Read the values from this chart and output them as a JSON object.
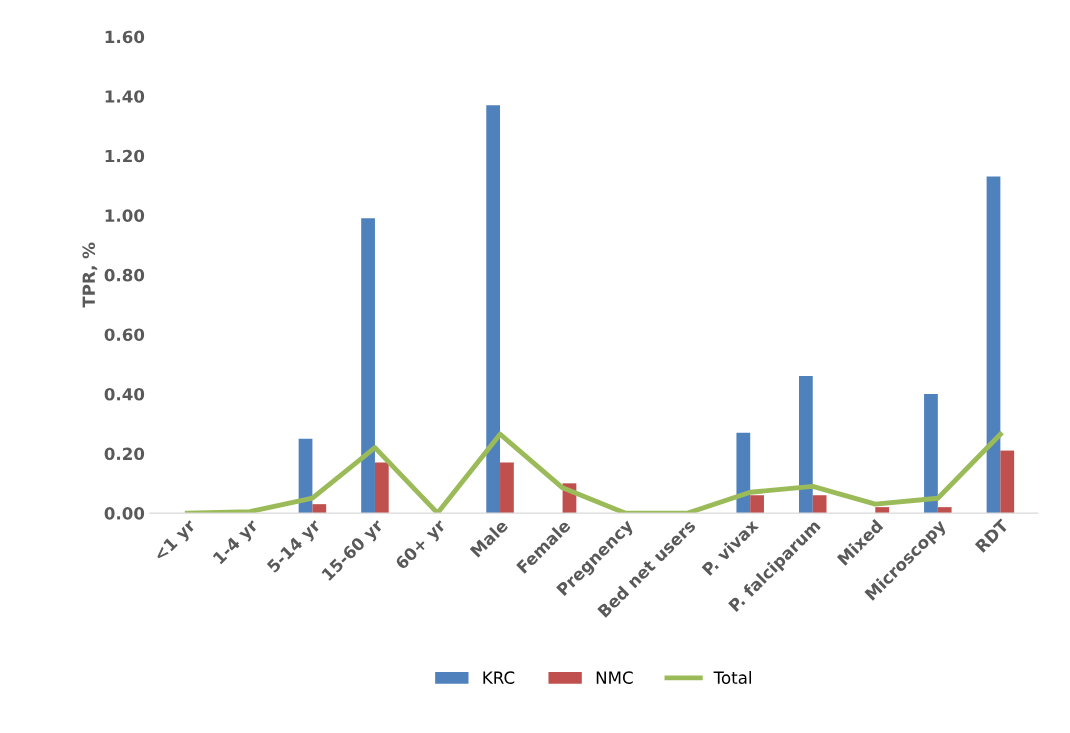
{
  "chart_data": {
    "type": "bar",
    "ylabel": "TPR, %",
    "categories": [
      "<1 yr",
      "1-4 yr",
      "5-14 yr",
      "15-60 yr",
      "60+ yr",
      "Male",
      "Female",
      "Pregnency",
      "Bed net users",
      "P. vivax",
      "P. falciparum",
      "Mixed",
      "Microscopy",
      "RDT"
    ],
    "series": [
      {
        "name": "KRC",
        "color": "#4f81bd",
        "values": [
          0,
          0,
          0.25,
          0.99,
          0,
          1.37,
          0,
          0,
          0,
          0.27,
          0.46,
          0,
          0.4,
          1.13
        ]
      },
      {
        "name": "NMC",
        "color": "#c0504d",
        "values": [
          0,
          0,
          0.03,
          0.17,
          0,
          0.17,
          0.1,
          0,
          0,
          0.06,
          0.06,
          0.02,
          0.02,
          0.21
        ]
      },
      {
        "name": "Total",
        "color": "#9bbb59",
        "type": "line",
        "values": [
          0,
          0.005,
          0.05,
          0.22,
          0,
          0.265,
          0.085,
          0,
          0,
          0.07,
          0.09,
          0.03,
          0.05,
          0.265
        ]
      }
    ],
    "ylim": [
      0,
      1.6
    ],
    "yticks": [
      {
        "value": 0,
        "label": "0.00"
      },
      {
        "value": 0.2,
        "label": "0.20"
      },
      {
        "value": 0.4,
        "label": "0.40"
      },
      {
        "value": 0.6,
        "label": "0.60"
      },
      {
        "value": 0.8,
        "label": "0.80"
      },
      {
        "value": 1.0,
        "label": "1.00"
      },
      {
        "value": 1.2,
        "label": "1.20"
      },
      {
        "value": 1.4,
        "label": "1.40"
      },
      {
        "value": 1.6,
        "label": "1.60"
      }
    ],
    "grid": false,
    "legend": "bottom"
  }
}
